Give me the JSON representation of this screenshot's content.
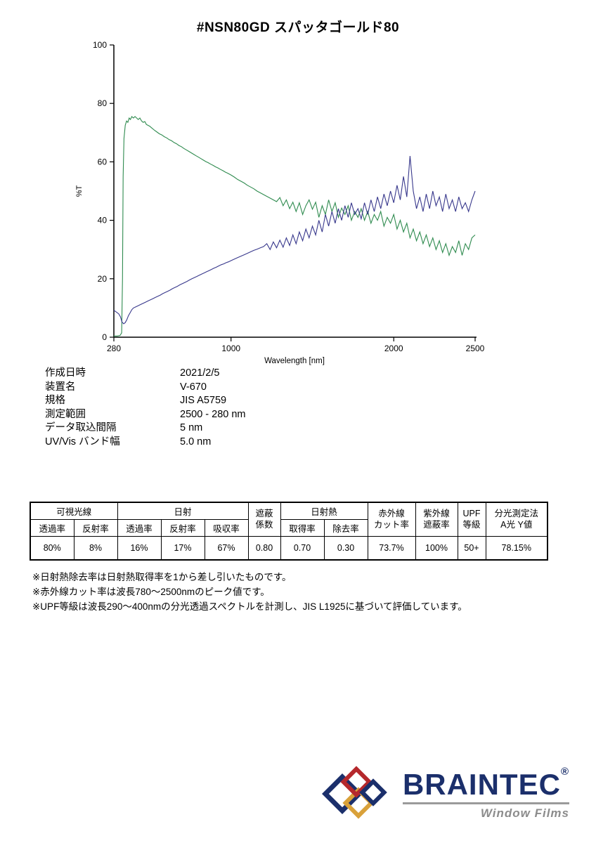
{
  "title": "#NSN80GD  スパッタゴールド80",
  "chart_data": {
    "type": "line",
    "title": "#NSN80GD スパッタゴールド80",
    "xlabel": "Wavelength [nm]",
    "ylabel": "%T",
    "xlim": [
      280,
      2500
    ],
    "ylim": [
      0,
      100
    ],
    "x_ticks": [
      280,
      1000,
      2000,
      2500
    ],
    "y_ticks": [
      0,
      20,
      40,
      60,
      80,
      100
    ],
    "grid": false,
    "legend_position": "none",
    "series": [
      {
        "name": "green-spectrum",
        "color": "#2f8b4f",
        "points": [
          [
            280,
            0.4
          ],
          [
            300,
            0.4
          ],
          [
            318,
            0.6
          ],
          [
            328,
            1.5
          ],
          [
            333,
            20
          ],
          [
            337,
            55
          ],
          [
            342,
            68
          ],
          [
            350,
            72.5
          ],
          [
            358,
            74
          ],
          [
            366,
            73.5
          ],
          [
            374,
            75
          ],
          [
            382,
            74.5
          ],
          [
            390,
            75.5
          ],
          [
            400,
            75
          ],
          [
            410,
            75.5
          ],
          [
            420,
            75
          ],
          [
            430,
            74.5
          ],
          [
            440,
            75
          ],
          [
            450,
            74
          ],
          [
            460,
            73.5
          ],
          [
            470,
            73.8
          ],
          [
            480,
            72.8
          ],
          [
            490,
            72.5
          ],
          [
            500,
            72.2
          ],
          [
            515,
            71.5
          ],
          [
            530,
            70.8
          ],
          [
            545,
            70.2
          ],
          [
            560,
            69.6
          ],
          [
            575,
            69.2
          ],
          [
            590,
            68.6
          ],
          [
            605,
            68.2
          ],
          [
            620,
            67.6
          ],
          [
            635,
            67.2
          ],
          [
            650,
            66.6
          ],
          [
            665,
            66.2
          ],
          [
            680,
            65.6
          ],
          [
            695,
            65.2
          ],
          [
            710,
            64.6
          ],
          [
            725,
            64.1
          ],
          [
            740,
            63.6
          ],
          [
            755,
            63.1
          ],
          [
            770,
            62.6
          ],
          [
            785,
            62.1
          ],
          [
            800,
            61.6
          ],
          [
            815,
            61.1
          ],
          [
            830,
            60.6
          ],
          [
            845,
            60.1
          ],
          [
            860,
            59.7
          ],
          [
            875,
            59.2
          ],
          [
            890,
            58.8
          ],
          [
            905,
            58.3
          ],
          [
            920,
            57.9
          ],
          [
            935,
            57.4
          ],
          [
            950,
            57.0
          ],
          [
            965,
            56.5
          ],
          [
            980,
            56.1
          ],
          [
            1000,
            55.5
          ],
          [
            1020,
            54.8
          ],
          [
            1040,
            54.0
          ],
          [
            1060,
            53.4
          ],
          [
            1080,
            52.8
          ],
          [
            1100,
            52.0
          ],
          [
            1120,
            51.4
          ],
          [
            1140,
            50.8
          ],
          [
            1160,
            50.0
          ],
          [
            1180,
            49.4
          ],
          [
            1200,
            48.8
          ],
          [
            1220,
            48.2
          ],
          [
            1240,
            47.6
          ],
          [
            1260,
            47.0
          ],
          [
            1280,
            46.4
          ],
          [
            1300,
            47.8
          ],
          [
            1320,
            45.0
          ],
          [
            1340,
            47.0
          ],
          [
            1360,
            44.0
          ],
          [
            1380,
            46.2
          ],
          [
            1400,
            43.0
          ],
          [
            1420,
            46.0
          ],
          [
            1440,
            42.0
          ],
          [
            1460,
            45.0
          ],
          [
            1480,
            47.0
          ],
          [
            1500,
            43.8
          ],
          [
            1520,
            46.2
          ],
          [
            1540,
            41.0
          ],
          [
            1560,
            45.0
          ],
          [
            1580,
            42.0
          ],
          [
            1600,
            47.0
          ],
          [
            1620,
            43.0
          ],
          [
            1640,
            46.0
          ],
          [
            1660,
            41.0
          ],
          [
            1680,
            44.2
          ],
          [
            1700,
            42.0
          ],
          [
            1720,
            45.0
          ],
          [
            1740,
            40.0
          ],
          [
            1760,
            43.0
          ],
          [
            1780,
            41.0
          ],
          [
            1800,
            44.0
          ],
          [
            1820,
            40.0
          ],
          [
            1840,
            43.0
          ],
          [
            1860,
            39.0
          ],
          [
            1880,
            42.0
          ],
          [
            1900,
            40.0
          ],
          [
            1920,
            43.0
          ],
          [
            1940,
            38.0
          ],
          [
            1960,
            41.0
          ],
          [
            1980,
            39.0
          ],
          [
            2000,
            42.0
          ],
          [
            2020,
            37.0
          ],
          [
            2040,
            40.0
          ],
          [
            2060,
            36.0
          ],
          [
            2080,
            39.0
          ],
          [
            2100,
            34.0
          ],
          [
            2120,
            37.0
          ],
          [
            2140,
            33.0
          ],
          [
            2160,
            36.0
          ],
          [
            2180,
            32.0
          ],
          [
            2200,
            35.0
          ],
          [
            2220,
            31.0
          ],
          [
            2240,
            34.0
          ],
          [
            2260,
            30.0
          ],
          [
            2280,
            33.0
          ],
          [
            2300,
            29.0
          ],
          [
            2320,
            32.0
          ],
          [
            2340,
            28.0
          ],
          [
            2360,
            31.0
          ],
          [
            2380,
            29.0
          ],
          [
            2400,
            33.0
          ],
          [
            2420,
            28.0
          ],
          [
            2440,
            32.0
          ],
          [
            2460,
            30.0
          ],
          [
            2480,
            34.0
          ],
          [
            2500,
            35.0
          ]
        ]
      },
      {
        "name": "navy-spectrum",
        "color": "#38388c",
        "points": [
          [
            280,
            9.2
          ],
          [
            295,
            8.6
          ],
          [
            310,
            8.0
          ],
          [
            320,
            7.0
          ],
          [
            330,
            5.2
          ],
          [
            340,
            4.6
          ],
          [
            350,
            5.0
          ],
          [
            360,
            6.0
          ],
          [
            370,
            7.4
          ],
          [
            380,
            8.4
          ],
          [
            390,
            9.4
          ],
          [
            400,
            10.0
          ],
          [
            415,
            10.4
          ],
          [
            430,
            10.8
          ],
          [
            445,
            11.2
          ],
          [
            460,
            11.6
          ],
          [
            475,
            12.0
          ],
          [
            490,
            12.4
          ],
          [
            505,
            12.8
          ],
          [
            520,
            13.2
          ],
          [
            535,
            13.6
          ],
          [
            550,
            14.0
          ],
          [
            565,
            14.4
          ],
          [
            580,
            14.9
          ],
          [
            595,
            15.3
          ],
          [
            610,
            15.7
          ],
          [
            625,
            16.1
          ],
          [
            640,
            16.6
          ],
          [
            655,
            17.0
          ],
          [
            670,
            17.4
          ],
          [
            685,
            17.9
          ],
          [
            700,
            18.3
          ],
          [
            715,
            18.7
          ],
          [
            730,
            19.1
          ],
          [
            745,
            19.6
          ],
          [
            760,
            20.0
          ],
          [
            775,
            20.4
          ],
          [
            790,
            20.8
          ],
          [
            805,
            21.2
          ],
          [
            820,
            21.6
          ],
          [
            835,
            22.0
          ],
          [
            850,
            22.4
          ],
          [
            865,
            22.8
          ],
          [
            880,
            23.2
          ],
          [
            895,
            23.6
          ],
          [
            910,
            24.0
          ],
          [
            925,
            24.4
          ],
          [
            940,
            24.8
          ],
          [
            955,
            25.1
          ],
          [
            970,
            25.5
          ],
          [
            985,
            25.8
          ],
          [
            1000,
            26.2
          ],
          [
            1020,
            26.7
          ],
          [
            1040,
            27.2
          ],
          [
            1060,
            27.7
          ],
          [
            1080,
            28.2
          ],
          [
            1100,
            28.7
          ],
          [
            1120,
            29.2
          ],
          [
            1140,
            29.7
          ],
          [
            1160,
            30.1
          ],
          [
            1180,
            30.6
          ],
          [
            1200,
            31.0
          ],
          [
            1220,
            32.0
          ],
          [
            1240,
            30.0
          ],
          [
            1260,
            32.6
          ],
          [
            1280,
            30.6
          ],
          [
            1300,
            33.2
          ],
          [
            1320,
            30.8
          ],
          [
            1340,
            34.0
          ],
          [
            1360,
            31.4
          ],
          [
            1380,
            35.0
          ],
          [
            1400,
            32.0
          ],
          [
            1420,
            36.0
          ],
          [
            1440,
            33.0
          ],
          [
            1460,
            37.0
          ],
          [
            1480,
            34.0
          ],
          [
            1500,
            38.0
          ],
          [
            1520,
            35.0
          ],
          [
            1540,
            40.0
          ],
          [
            1560,
            36.0
          ],
          [
            1580,
            42.0
          ],
          [
            1600,
            38.0
          ],
          [
            1620,
            43.0
          ],
          [
            1640,
            39.0
          ],
          [
            1660,
            44.0
          ],
          [
            1680,
            40.0
          ],
          [
            1700,
            45.0
          ],
          [
            1720,
            41.0
          ],
          [
            1740,
            46.0
          ],
          [
            1760,
            42.0
          ],
          [
            1780,
            44.0
          ],
          [
            1800,
            40.5
          ],
          [
            1820,
            46.0
          ],
          [
            1840,
            42.0
          ],
          [
            1860,
            47.0
          ],
          [
            1880,
            43.0
          ],
          [
            1900,
            48.0
          ],
          [
            1920,
            44.0
          ],
          [
            1940,
            49.0
          ],
          [
            1960,
            45.0
          ],
          [
            1980,
            50.0
          ],
          [
            2000,
            46.0
          ],
          [
            2020,
            52.0
          ],
          [
            2040,
            47.0
          ],
          [
            2060,
            55.0
          ],
          [
            2080,
            48.0
          ],
          [
            2100,
            62.0
          ],
          [
            2120,
            50.0
          ],
          [
            2140,
            44.0
          ],
          [
            2160,
            48.0
          ],
          [
            2180,
            43.0
          ],
          [
            2200,
            49.0
          ],
          [
            2220,
            44.0
          ],
          [
            2240,
            50.0
          ],
          [
            2260,
            45.0
          ],
          [
            2280,
            48.0
          ],
          [
            2300,
            43.0
          ],
          [
            2320,
            49.0
          ],
          [
            2340,
            44.0
          ],
          [
            2360,
            47.0
          ],
          [
            2380,
            43.0
          ],
          [
            2400,
            48.0
          ],
          [
            2420,
            44.0
          ],
          [
            2440,
            46.0
          ],
          [
            2460,
            43.0
          ],
          [
            2480,
            47.0
          ],
          [
            2500,
            50.0
          ]
        ]
      }
    ]
  },
  "meta": {
    "rows": [
      {
        "label": "作成日時",
        "value": "2021/2/5"
      },
      {
        "label": "装置名",
        "value": "V-670"
      },
      {
        "label": "規格",
        "value": "JIS A5759"
      },
      {
        "label": "測定範囲",
        "value": "2500 - 280 nm"
      },
      {
        "label": "データ取込間隔",
        "value": "5 nm"
      },
      {
        "label": "UV/Vis バンド幅",
        "value": "5.0 nm"
      }
    ]
  },
  "table": {
    "h_visible": "可視光線",
    "h_solar": "日射",
    "h_shading_1": "遮蔽",
    "h_shading_2": "係数",
    "h_solar_heat": "日射熱",
    "h_ir_1": "赤外線",
    "h_ir_2": "カット率",
    "h_uv_1": "紫外線",
    "h_uv_2": "遮蔽率",
    "h_upf_1": "UPF",
    "h_upf_2": "等級",
    "h_spec_1": "分光測定法",
    "h_spec_2": "A光 Y値",
    "sub": [
      "透過率",
      "反射率",
      "透過率",
      "反射率",
      "吸収率",
      "取得率",
      "除去率"
    ],
    "values": [
      "80%",
      "8%",
      "16%",
      "17%",
      "67%",
      "0.80",
      "0.70",
      "0.30",
      "73.7%",
      "100%",
      "50+",
      "78.15%"
    ]
  },
  "notes": [
    "※日射熱除去率は日射熱取得率を1から差し引いたものです。",
    "※赤外線カット率は波長780〜2500nmのピーク値です。",
    "※UPF等級は波長290〜400nmの分光透過スペクトルを計測し、JIS L1925に基づいて評価しています。"
  ],
  "logo": {
    "brand": "BRAINTEC",
    "registered": "®",
    "subtitle": "Window Films",
    "colors": {
      "navy": "#1b2f6b",
      "red": "#b5282c",
      "gold": "#d9a13a",
      "gray": "#8c8c8c"
    }
  }
}
